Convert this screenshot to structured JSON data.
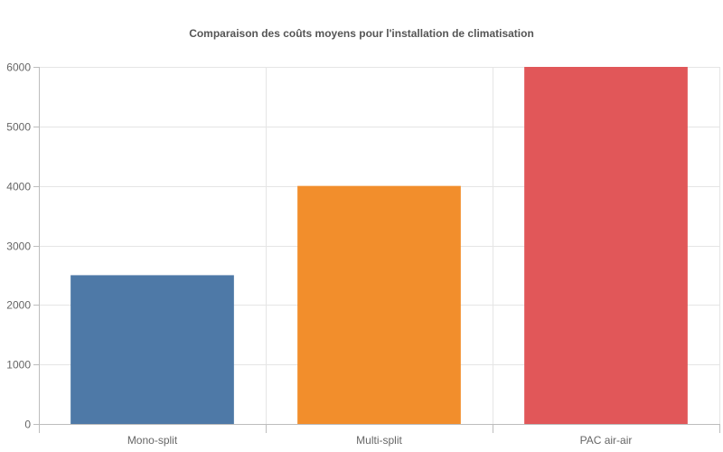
{
  "chart_data": {
    "type": "bar",
    "title": "Comparaison des coûts moyens pour l'installation de climatisation",
    "categories": [
      "Mono-split",
      "Multi-split",
      "PAC air-air"
    ],
    "values": [
      2500,
      4000,
      6000
    ],
    "colors": [
      "#4e79a7",
      "#f28e2c",
      "#e15759"
    ],
    "xlabel": "",
    "ylabel": "",
    "ylim": [
      0,
      6000
    ],
    "yticks": [
      0,
      1000,
      2000,
      3000,
      4000,
      5000,
      6000
    ],
    "grid": true,
    "legend": "none"
  }
}
